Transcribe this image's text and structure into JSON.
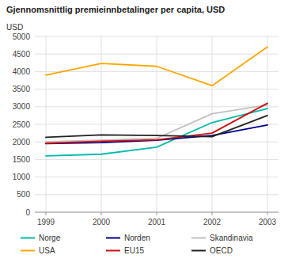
{
  "chart_data": {
    "type": "line",
    "title": "Gjennomsnittlig premieinnbetalinger per capita, USD",
    "ylabel": "USD",
    "categories": [
      "1999",
      "2000",
      "2001",
      "2002",
      "2003"
    ],
    "series": [
      {
        "name": "Norge",
        "color": "#00BBAA",
        "values": [
          1600,
          1650,
          1850,
          2550,
          2950
        ]
      },
      {
        "name": "Norden",
        "color": "#00008B",
        "values": [
          1950,
          1980,
          2050,
          2180,
          2480
        ]
      },
      {
        "name": "Skandinavia",
        "color": "#C0C0C0",
        "values": [
          2000,
          2050,
          2100,
          2800,
          3050
        ]
      },
      {
        "name": "USA",
        "color": "#FFA500",
        "values": [
          3900,
          4230,
          4150,
          3600,
          4700
        ]
      },
      {
        "name": "EU15",
        "color": "#CC1111",
        "values": [
          1960,
          2020,
          2060,
          2250,
          3100
        ]
      },
      {
        "name": "OECD",
        "color": "#222222",
        "values": [
          2130,
          2200,
          2180,
          2150,
          2750
        ]
      }
    ],
    "ylim": [
      0,
      5000
    ],
    "yticks": [
      0,
      500,
      1000,
      1500,
      2000,
      2500,
      3000,
      3500,
      4000,
      4500,
      5000
    ],
    "grid": true,
    "legend": "bottom"
  }
}
